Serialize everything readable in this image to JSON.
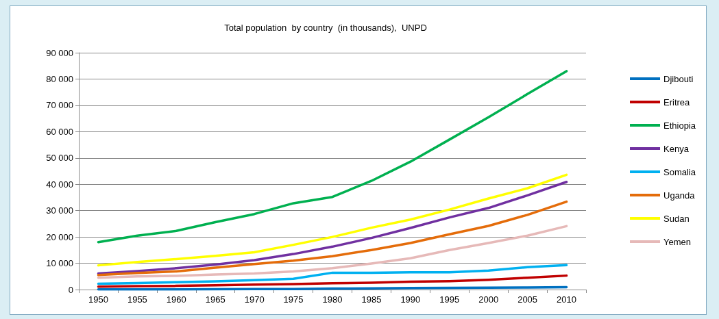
{
  "chart_data": {
    "type": "line",
    "title": "Total population  by country  (in thousands),  UNPD",
    "categories": [
      "1950",
      "1955",
      "1960",
      "1965",
      "1970",
      "1975",
      "1980",
      "1985",
      "1990",
      "1995",
      "2000",
      "2005",
      "2010"
    ],
    "series": [
      {
        "name": "Djibouti",
        "color": "#0070c0",
        "values": [
          60,
          80,
          90,
          120,
          170,
          220,
          360,
          470,
          590,
          630,
          730,
          800,
          890
        ]
      },
      {
        "name": "Eritrea",
        "color": "#c00000",
        "values": [
          1100,
          1300,
          1400,
          1600,
          1900,
          2100,
          2400,
          2600,
          3000,
          3200,
          3700,
          4500,
          5300
        ]
      },
      {
        "name": "Ethiopia",
        "color": "#00b050",
        "values": [
          18000,
          20500,
          22300,
          25600,
          28700,
          32800,
          35200,
          41300,
          48600,
          57000,
          65500,
          74300,
          83000
        ]
      },
      {
        "name": "Kenya",
        "color": "#7030a0",
        "values": [
          6100,
          7000,
          8100,
          9500,
          11200,
          13500,
          16300,
          19600,
          23400,
          27400,
          31000,
          35800,
          40900
        ]
      },
      {
        "name": "Somalia",
        "color": "#00b0f0",
        "values": [
          2200,
          2500,
          2800,
          3100,
          3600,
          4100,
          6400,
          6400,
          6600,
          6600,
          7200,
          8500,
          9300
        ]
      },
      {
        "name": "Uganda",
        "color": "#e46c0a",
        "values": [
          5500,
          6300,
          6900,
          8300,
          9700,
          11000,
          12700,
          15000,
          17700,
          21000,
          24200,
          28400,
          33400
        ]
      },
      {
        "name": "Sudan",
        "color": "#ffff00",
        "values": [
          9200,
          10500,
          11600,
          12800,
          14200,
          17000,
          20000,
          23500,
          26600,
          30400,
          34600,
          38500,
          43600
        ]
      },
      {
        "name": "Yemen",
        "color": "#e6b9b8",
        "values": [
          4500,
          5000,
          5200,
          5700,
          6100,
          6900,
          8100,
          9900,
          11900,
          15000,
          17700,
          20500,
          24100
        ]
      }
    ],
    "ylim": [
      0,
      90000
    ],
    "yticks": [
      0,
      {
        "value": 10000,
        "label": "10 000"
      },
      {
        "value": 20000,
        "label": "20 000"
      },
      {
        "value": 30000,
        "label": "30 000"
      },
      {
        "value": 40000,
        "label": "40 000"
      },
      {
        "value": 50000,
        "label": "50 000"
      },
      {
        "value": 60000,
        "label": "60 000"
      },
      {
        "value": 70000,
        "label": "70 000"
      },
      {
        "value": 80000,
        "label": "80 000"
      },
      {
        "value": 90000,
        "label": "90 000"
      }
    ],
    "grid": "y",
    "legend": "right",
    "marker": "none",
    "line_style": "solid"
  }
}
